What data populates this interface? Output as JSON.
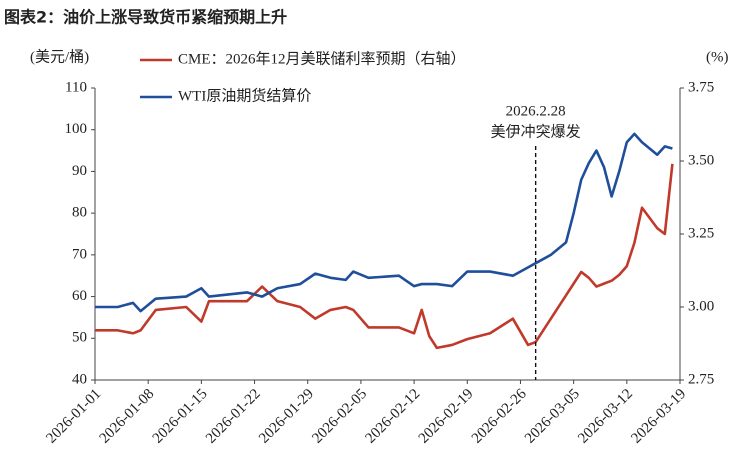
{
  "chart_data": {
    "type": "line",
    "title": "图表2：油价上涨导致货币紧缩预期上升",
    "ylabel": "(美元/桶)",
    "y2label": "(%)",
    "x": [
      "2026-01-01",
      "2026-01-04",
      "2026-01-06",
      "2026-01-07",
      "2026-01-09",
      "2026-01-13",
      "2026-01-15",
      "2026-01-16",
      "2026-01-21",
      "2026-01-23",
      "2026-01-25",
      "2026-01-28",
      "2026-01-30",
      "2026-02-01",
      "2026-02-03",
      "2026-02-04",
      "2026-02-06",
      "2026-02-10",
      "2026-02-12",
      "2026-02-13",
      "2026-02-14",
      "2026-02-15",
      "2026-02-17",
      "2026-02-19",
      "2026-02-22",
      "2026-02-25",
      "2026-02-27",
      "2026-02-28",
      "2026-03-02",
      "2026-03-04",
      "2026-03-05",
      "2026-03-06",
      "2026-03-07",
      "2026-03-08",
      "2026-03-09",
      "2026-03-10",
      "2026-03-11",
      "2026-03-12",
      "2026-03-13",
      "2026-03-14",
      "2026-03-16",
      "2026-03-17",
      "2026-03-18"
    ],
    "series": [
      {
        "name": "CME：2026年12月美联储利率预期（右轴）",
        "color": "#c0392b",
        "axis": "y2",
        "values": [
          2.92,
          2.92,
          2.91,
          2.92,
          2.99,
          3.0,
          2.95,
          3.02,
          3.02,
          3.07,
          3.02,
          3.0,
          2.96,
          2.99,
          3.0,
          2.99,
          2.93,
          2.93,
          2.91,
          2.99,
          2.9,
          2.86,
          2.87,
          2.89,
          2.91,
          2.96,
          2.87,
          2.88,
          2.96,
          3.04,
          3.08,
          3.12,
          3.1,
          3.07,
          3.08,
          3.09,
          3.11,
          3.14,
          3.22,
          3.34,
          3.27,
          3.25,
          3.49
        ]
      },
      {
        "name": "WTI原油期货结算价",
        "color": "#1f4e9a",
        "values": [
          57.5,
          57.5,
          58.5,
          56.5,
          59.5,
          60,
          62,
          60,
          61,
          60,
          62,
          63,
          65.5,
          64.5,
          64,
          66,
          64.5,
          65,
          62.5,
          63,
          63,
          63,
          62.5,
          66,
          66,
          65,
          67,
          68,
          70,
          73,
          80,
          88,
          92,
          95,
          91,
          84,
          90,
          97,
          99,
          97,
          94,
          96,
          95.5
        ]
      }
    ],
    "xlim": [
      "2026-01-01",
      "2026-03-19"
    ],
    "xticks": [
      "2026-01-01",
      "2026-01-08",
      "2026-01-15",
      "2026-01-22",
      "2026-01-29",
      "2026-02-05",
      "2026-02-12",
      "2026-02-19",
      "2026-02-26",
      "2026-03-05",
      "2026-03-12",
      "2026-03-19"
    ],
    "ylim": [
      40,
      110
    ],
    "yticks": [
      40,
      50,
      60,
      70,
      80,
      90,
      100,
      110
    ],
    "y2lim": [
      2.75,
      3.75
    ],
    "y2ticks": [
      2.75,
      {
        "value": 3,
        "label": "3.00"
      },
      3.25,
      {
        "value": 3.5,
        "label": "3.50"
      },
      3.75
    ],
    "annotation": {
      "x": "2026-02-28",
      "lines": [
        "2026.2.28",
        "美伊冲突爆发"
      ]
    },
    "grid": false
  }
}
